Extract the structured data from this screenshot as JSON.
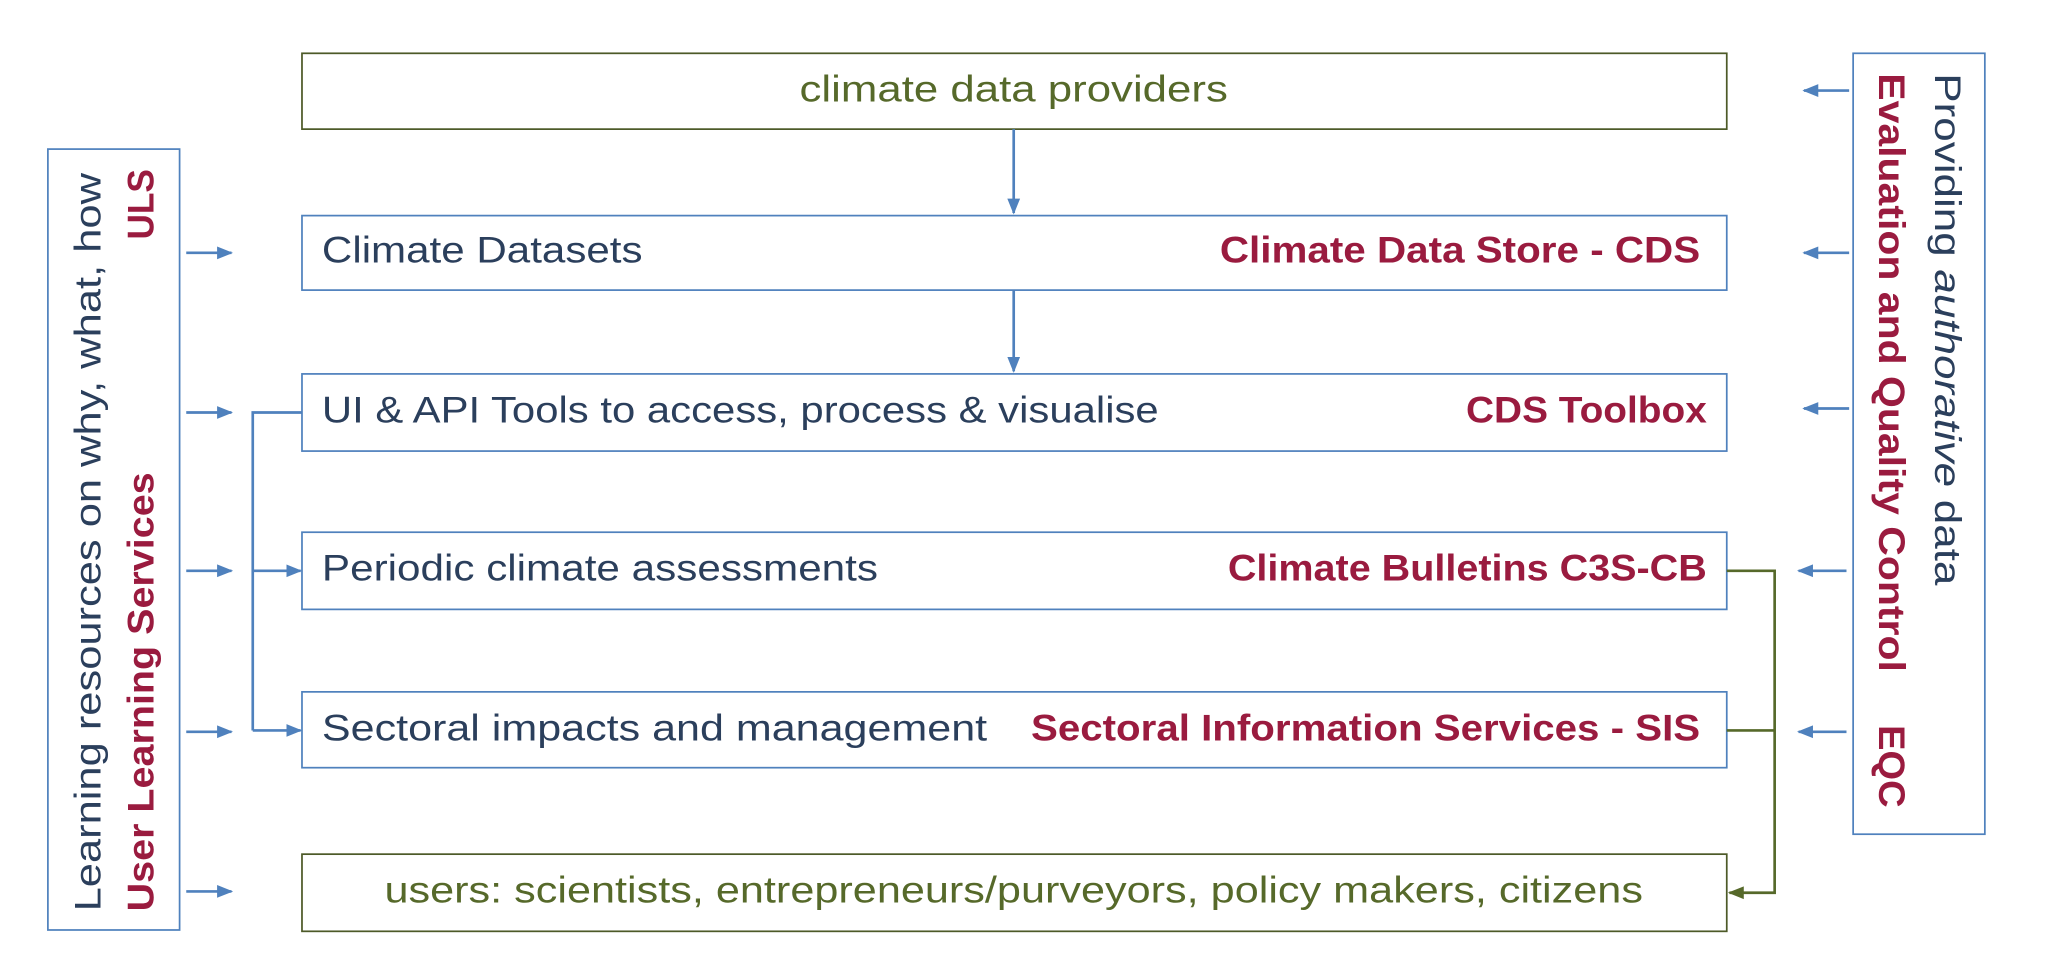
{
  "nodes": [
    {
      "label": "climate data providers"
    },
    {
      "label": "Climate Datasets",
      "service": "Climate Data Store - CDS"
    },
    {
      "label": "UI & API Tools to access, process & visualise",
      "service": "CDS Toolbox"
    },
    {
      "label": "Periodic climate assessments",
      "service": "Climate Bulletins C3S-CB"
    },
    {
      "label": "Sectoral impacts and management",
      "service": "Sectoral Information Services - SIS"
    },
    {
      "label": "users: scientists, entrepreneurs/purveyors, policy makers, citizens"
    }
  ],
  "left_panel": {
    "description": "Learning resources on why, what, how",
    "title": "User Learning Services",
    "abbreviation": "ULS"
  },
  "right_panel": {
    "description_parts": [
      "Providing",
      "authorative",
      "data"
    ],
    "title": "Evaluation and Quality Control",
    "abbreviation": "EQC"
  }
}
